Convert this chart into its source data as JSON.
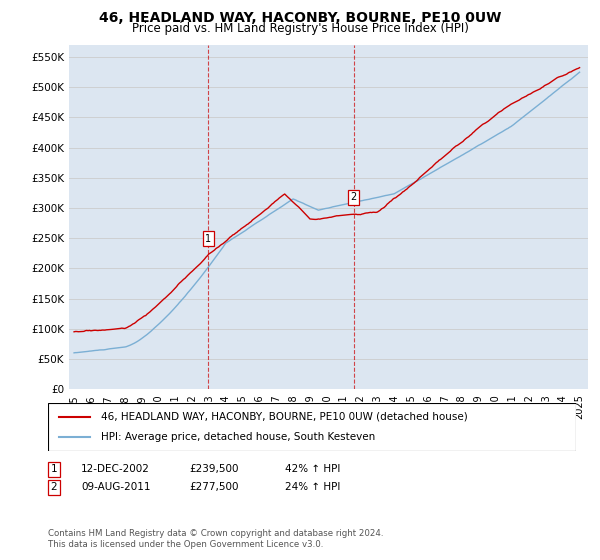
{
  "title": "46, HEADLAND WAY, HACONBY, BOURNE, PE10 0UW",
  "subtitle": "Price paid vs. HM Land Registry's House Price Index (HPI)",
  "title_fontsize": 10,
  "subtitle_fontsize": 8.5,
  "ylabel_ticks": [
    "£0",
    "£50K",
    "£100K",
    "£150K",
    "£200K",
    "£250K",
    "£300K",
    "£350K",
    "£400K",
    "£450K",
    "£500K",
    "£550K"
  ],
  "ytick_values": [
    0,
    50000,
    100000,
    150000,
    200000,
    250000,
    300000,
    350000,
    400000,
    450000,
    500000,
    550000
  ],
  "ylim": [
    0,
    570000
  ],
  "sale1": {
    "date_num": 2002.95,
    "price": 239500,
    "label": "1"
  },
  "sale2": {
    "date_num": 2011.6,
    "price": 277500,
    "label": "2"
  },
  "legend_line1": "46, HEADLAND WAY, HACONBY, BOURNE, PE10 0UW (detached house)",
  "legend_line2": "HPI: Average price, detached house, South Kesteven",
  "footer": "Contains HM Land Registry data © Crown copyright and database right 2024.\nThis data is licensed under the Open Government Licence v3.0.",
  "hpi_color": "#7bafd4",
  "price_color": "#cc0000",
  "bg_color": "#dce6f1",
  "plot_bg": "#ffffff",
  "vline_color": "#cc0000",
  "grid_color": "#cccccc",
  "ann1_date": "12-DEC-2002",
  "ann1_price": "£239,500",
  "ann1_pct": "42% ↑ HPI",
  "ann2_date": "09-AUG-2011",
  "ann2_price": "£277,500",
  "ann2_pct": "24% ↑ HPI"
}
